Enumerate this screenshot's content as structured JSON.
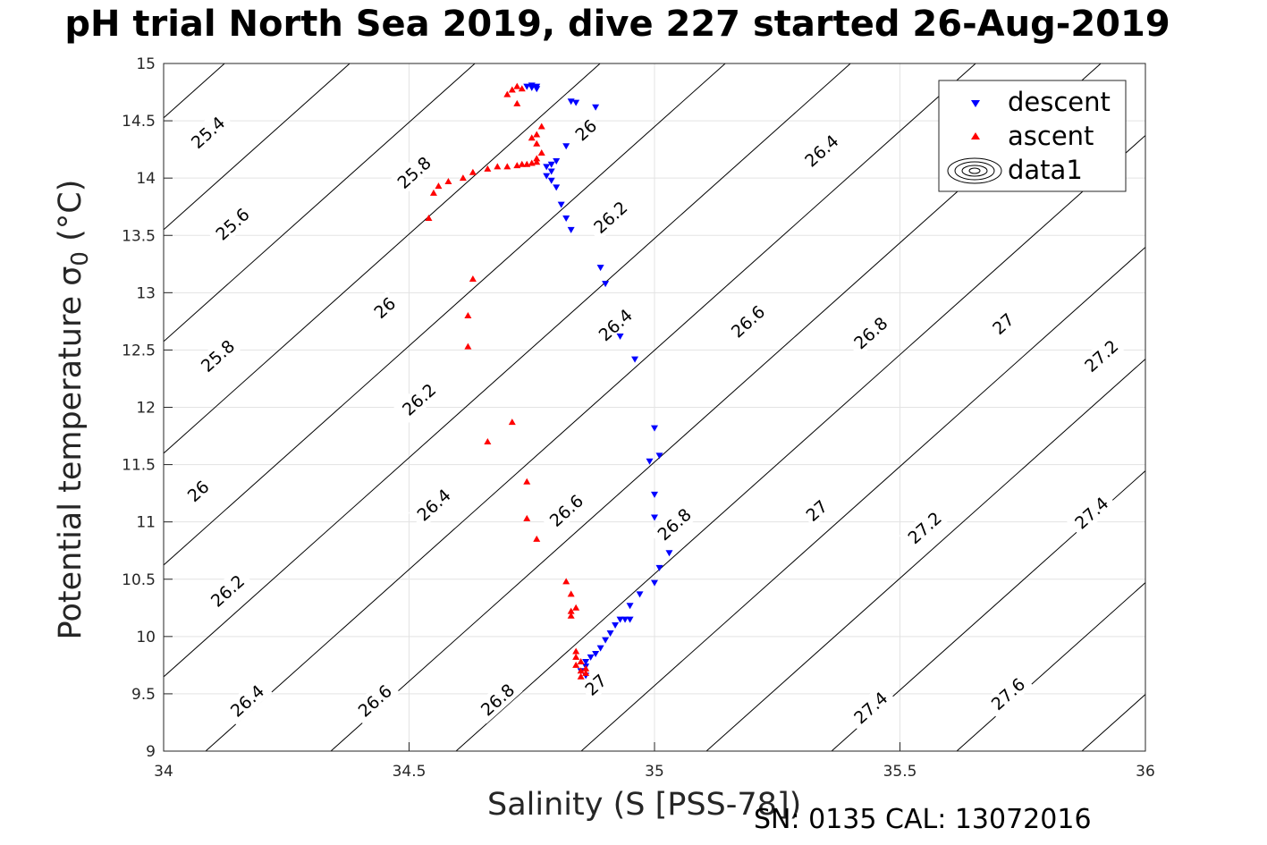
{
  "chart_data": {
    "type": "scatter",
    "title": "pH trial North Sea 2019, dive 227 started 26-Aug-2019",
    "xlabel": "Salinity (S [PSS-78])",
    "ylabel_prefix": "Potential temperature ",
    "ylabel_symbol": "σ",
    "ylabel_sub": "0",
    "ylabel_suffix": " (°C)",
    "xlim": [
      34,
      36
    ],
    "ylim": [
      9,
      15
    ],
    "xticks": [
      "34",
      "34.5",
      "35",
      "35.5",
      "36"
    ],
    "yticks": [
      "9",
      "9.5",
      "10",
      "10.5",
      "11",
      "11.5",
      "12",
      "12.5",
      "13",
      "13.5",
      "14",
      "14.5",
      "15"
    ],
    "grid": true,
    "legend_placement": "top-right",
    "footer": "SN: 0135  CAL: 13072016",
    "series": [
      {
        "name": "descent",
        "color": "#0000ff",
        "marker": "triangle-down",
        "points": [
          [
            34.74,
            14.8
          ],
          [
            34.75,
            14.79
          ],
          [
            34.76,
            14.8
          ],
          [
            34.76,
            14.78
          ],
          [
            34.75,
            14.81
          ],
          [
            34.83,
            14.67
          ],
          [
            34.84,
            14.66
          ],
          [
            34.88,
            14.62
          ],
          [
            34.82,
            14.28
          ],
          [
            34.8,
            14.15
          ],
          [
            34.79,
            14.12
          ],
          [
            34.78,
            14.1
          ],
          [
            34.79,
            14.06
          ],
          [
            34.78,
            14.02
          ],
          [
            34.79,
            13.98
          ],
          [
            34.8,
            13.92
          ],
          [
            34.81,
            13.77
          ],
          [
            34.82,
            13.65
          ],
          [
            34.83,
            13.55
          ],
          [
            34.89,
            13.22
          ],
          [
            34.9,
            13.08
          ],
          [
            34.93,
            12.62
          ],
          [
            34.96,
            12.42
          ],
          [
            35.0,
            11.82
          ],
          [
            35.01,
            11.58
          ],
          [
            34.99,
            11.53
          ],
          [
            35.0,
            11.24
          ],
          [
            35.0,
            11.04
          ],
          [
            35.03,
            10.73
          ],
          [
            35.01,
            10.6
          ],
          [
            35.0,
            10.47
          ],
          [
            34.97,
            10.37
          ],
          [
            34.95,
            10.27
          ],
          [
            34.93,
            10.15
          ],
          [
            34.94,
            10.15
          ],
          [
            34.95,
            10.15
          ],
          [
            34.92,
            10.1
          ],
          [
            34.91,
            10.03
          ],
          [
            34.9,
            9.97
          ],
          [
            34.89,
            9.9
          ],
          [
            34.88,
            9.85
          ],
          [
            34.87,
            9.82
          ],
          [
            34.86,
            9.78
          ],
          [
            34.86,
            9.74
          ],
          [
            34.85,
            9.7
          ],
          [
            34.86,
            9.66
          ]
        ]
      },
      {
        "name": "ascent",
        "color": "#ff0000",
        "marker": "triangle-up",
        "points": [
          [
            34.72,
            14.8
          ],
          [
            34.71,
            14.77
          ],
          [
            34.73,
            14.78
          ],
          [
            34.7,
            14.73
          ],
          [
            34.72,
            14.65
          ],
          [
            34.77,
            14.45
          ],
          [
            34.76,
            14.38
          ],
          [
            34.75,
            14.35
          ],
          [
            34.76,
            14.3
          ],
          [
            34.77,
            14.22
          ],
          [
            34.76,
            14.17
          ],
          [
            34.76,
            14.14
          ],
          [
            34.75,
            14.13
          ],
          [
            34.74,
            14.12
          ],
          [
            34.73,
            14.12
          ],
          [
            34.72,
            14.11
          ],
          [
            34.7,
            14.1
          ],
          [
            34.68,
            14.1
          ],
          [
            34.66,
            14.08
          ],
          [
            34.63,
            14.05
          ],
          [
            34.61,
            14.0
          ],
          [
            34.58,
            13.97
          ],
          [
            34.56,
            13.93
          ],
          [
            34.55,
            13.87
          ],
          [
            34.54,
            13.65
          ],
          [
            34.63,
            13.12
          ],
          [
            34.62,
            12.8
          ],
          [
            34.62,
            12.53
          ],
          [
            34.71,
            11.87
          ],
          [
            34.66,
            11.7
          ],
          [
            34.74,
            11.35
          ],
          [
            34.74,
            11.03
          ],
          [
            34.76,
            10.85
          ],
          [
            34.82,
            10.48
          ],
          [
            34.83,
            10.37
          ],
          [
            34.84,
            10.25
          ],
          [
            34.83,
            10.22
          ],
          [
            34.83,
            10.18
          ],
          [
            34.84,
            9.87
          ],
          [
            34.84,
            9.82
          ],
          [
            34.85,
            9.78
          ],
          [
            34.84,
            9.75
          ],
          [
            34.86,
            9.72
          ],
          [
            34.85,
            9.7
          ],
          [
            34.86,
            9.68
          ],
          [
            34.85,
            9.65
          ]
        ]
      },
      {
        "name": "data1",
        "color": "#000000",
        "marker": "contour"
      }
    ],
    "contour_labels": [
      {
        "text": "25.4",
        "x": 34.09,
        "y": 14.4
      },
      {
        "text": "25.6",
        "x": 34.14,
        "y": 13.6
      },
      {
        "text": "25.8",
        "x": 34.11,
        "y": 12.45
      },
      {
        "text": "26",
        "x": 34.07,
        "y": 11.27
      },
      {
        "text": "26.2",
        "x": 34.13,
        "y": 10.4
      },
      {
        "text": "26.4",
        "x": 34.17,
        "y": 9.44
      },
      {
        "text": "25.8",
        "x": 34.51,
        "y": 14.05
      },
      {
        "text": "26",
        "x": 34.45,
        "y": 12.87
      },
      {
        "text": "26.2",
        "x": 34.52,
        "y": 12.07
      },
      {
        "text": "26.4",
        "x": 34.55,
        "y": 11.15
      },
      {
        "text": "26.6",
        "x": 34.43,
        "y": 9.44
      },
      {
        "text": "26.8",
        "x": 34.68,
        "y": 9.45
      },
      {
        "text": "26",
        "x": 34.86,
        "y": 14.42
      },
      {
        "text": "26.2",
        "x": 34.91,
        "y": 13.66
      },
      {
        "text": "26.4",
        "x": 34.92,
        "y": 12.72
      },
      {
        "text": "26.6",
        "x": 34.82,
        "y": 11.1
      },
      {
        "text": "26.8",
        "x": 35.04,
        "y": 10.98
      },
      {
        "text": "27",
        "x": 34.88,
        "y": 9.58
      },
      {
        "text": "26.4",
        "x": 35.34,
        "y": 14.24
      },
      {
        "text": "26.6",
        "x": 35.19,
        "y": 12.75
      },
      {
        "text": "26.8",
        "x": 35.44,
        "y": 12.65
      },
      {
        "text": "27",
        "x": 35.33,
        "y": 11.1
      },
      {
        "text": "27",
        "x": 35.71,
        "y": 12.73
      },
      {
        "text": "27.2",
        "x": 35.55,
        "y": 10.95
      },
      {
        "text": "27.2",
        "x": 35.91,
        "y": 12.45
      },
      {
        "text": "27.4",
        "x": 35.89,
        "y": 11.08
      },
      {
        "text": "27.4",
        "x": 35.44,
        "y": 9.38
      },
      {
        "text": "27.6",
        "x": 35.72,
        "y": 9.5
      }
    ]
  }
}
